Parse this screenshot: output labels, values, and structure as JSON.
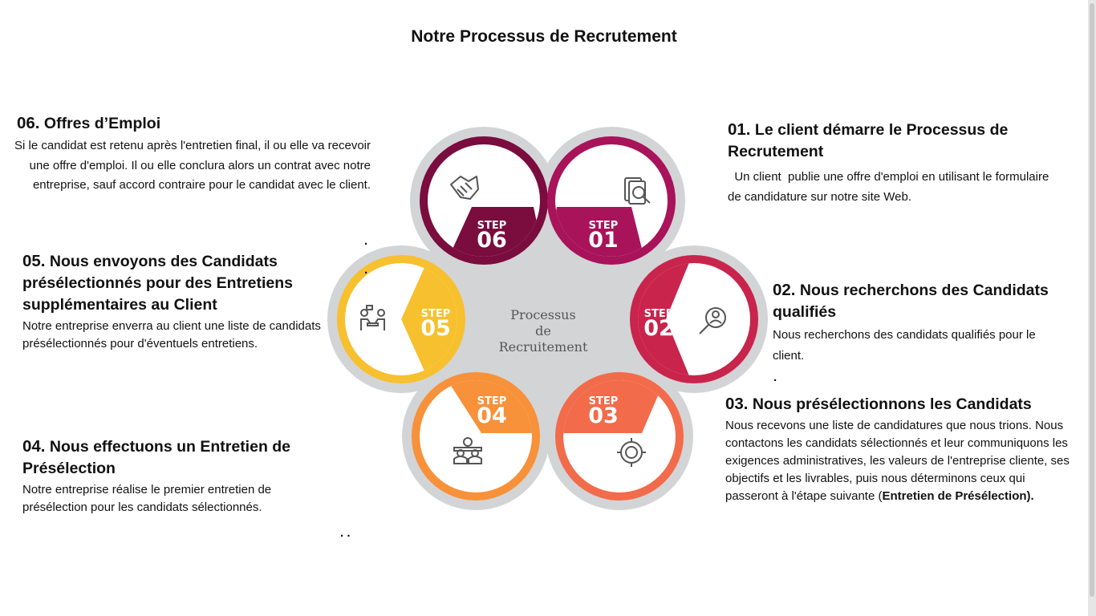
{
  "title": "Notre Processus de Recrutement",
  "center_label": [
    "Processus",
    "de",
    "Recruitement"
  ],
  "step_word": "STEP",
  "steps": [
    {
      "num": "01",
      "color": "#a8135a",
      "icon": "search-document-icon"
    },
    {
      "num": "02",
      "color": "#c9244c",
      "icon": "search-user-icon"
    },
    {
      "num": "03",
      "color": "#f26b4b",
      "icon": "target-user-icon"
    },
    {
      "num": "04",
      "color": "#f7913a",
      "icon": "meeting-icon"
    },
    {
      "num": "05",
      "color": "#f7c02e",
      "icon": "interview-icon"
    },
    {
      "num": "06",
      "color": "#7a0c3e",
      "icon": "handshake-icon"
    }
  ],
  "blocks": {
    "b6": {
      "num": "06.",
      "heading": "Offres d’Emploi",
      "text": "Si le candidat est retenu après l'entretien final, il ou elle va recevoir  une offre d'emploi. Il ou elle  conclura  alors un contrat avec notre entreprise, sauf accord contraire pour le candidat avec le client."
    },
    "b1": {
      "num": "01.",
      "heading": "Le client démarre le Processus de Recrutement",
      "text": "  Un client  publie une offre d'emploi en utilisant le formulaire de candidature sur notre site Web."
    },
    "b5": {
      "num": "05.",
      "heading": "Nous envoyons des Candidats présélectionnés pour des Entretiens supplémentaires au Client",
      "text": "Notre entreprise  enverra au client une liste de candidats présélectionnés pour d'éventuels entretiens."
    },
    "b2": {
      "num": "02.",
      "heading": "Nous recherchons des Candidats qualifiés",
      "text": "Nous recherchons des candidats qualifiés pour le client."
    },
    "b3": {
      "num": "03.",
      "heading": "Nous présélectionnons les Candidats",
      "text": "Nous recevons une liste de candidatures que nous trions. Nous contactons les candidats sélectionnés et leur communiquons les exigences administratives, les valeurs de l'entreprise cliente, ses objectifs et les livrables, puis nous déterminons ceux qui passeront à l'étape suivante (",
      "bold_text": "Entretien de Présélection",
      "text_end": ")."
    },
    "b4": {
      "num": "04.",
      "heading": "Nous effectuons un Entretien de Présélection",
      "text": "Notre entreprise réalise le premier entretien de présélection pour les candidats sélectionnés."
    }
  },
  "stray_dots": [
    ".",
    ".",
    ".",
    ". ."
  ]
}
